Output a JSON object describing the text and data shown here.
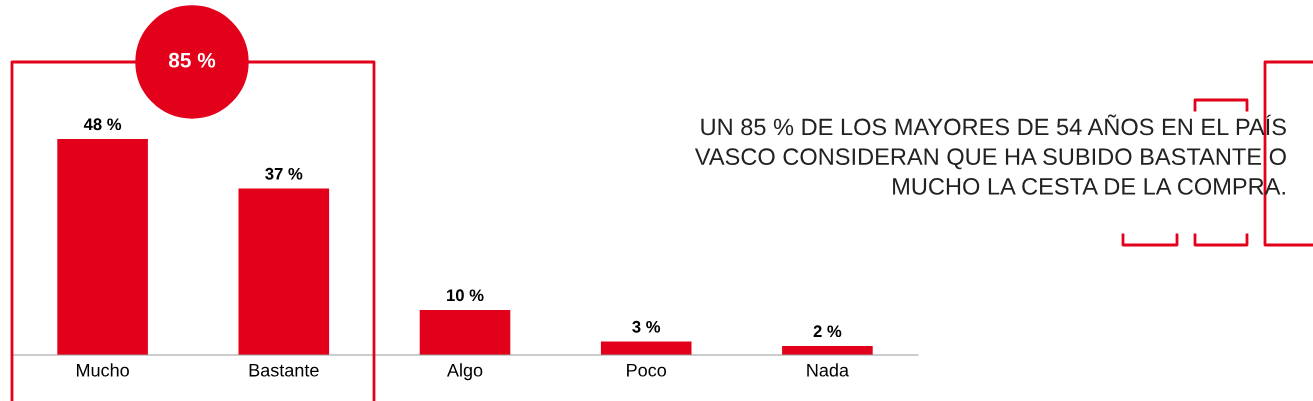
{
  "chart_data": {
    "type": "bar",
    "categories": [
      "Mucho",
      "Bastante",
      "Algo",
      "Poco",
      "Nada"
    ],
    "values": [
      48,
      37,
      10,
      3,
      2
    ],
    "value_labels": [
      "48 %",
      "37 %",
      "10 %",
      "3 %",
      "2 %"
    ],
    "color": "#e2001a",
    "grid": false,
    "legend": false,
    "annotations": [
      "85 %",
      "UN 85 % DE LOS MAYORES DE 54 AÑOS EN EL PAÍS\nVASCO CONSIDERAN QUE HA SUBIDO BASTANTE O\nMUCHO LA CESTA DE LA COMPRA."
    ]
  }
}
